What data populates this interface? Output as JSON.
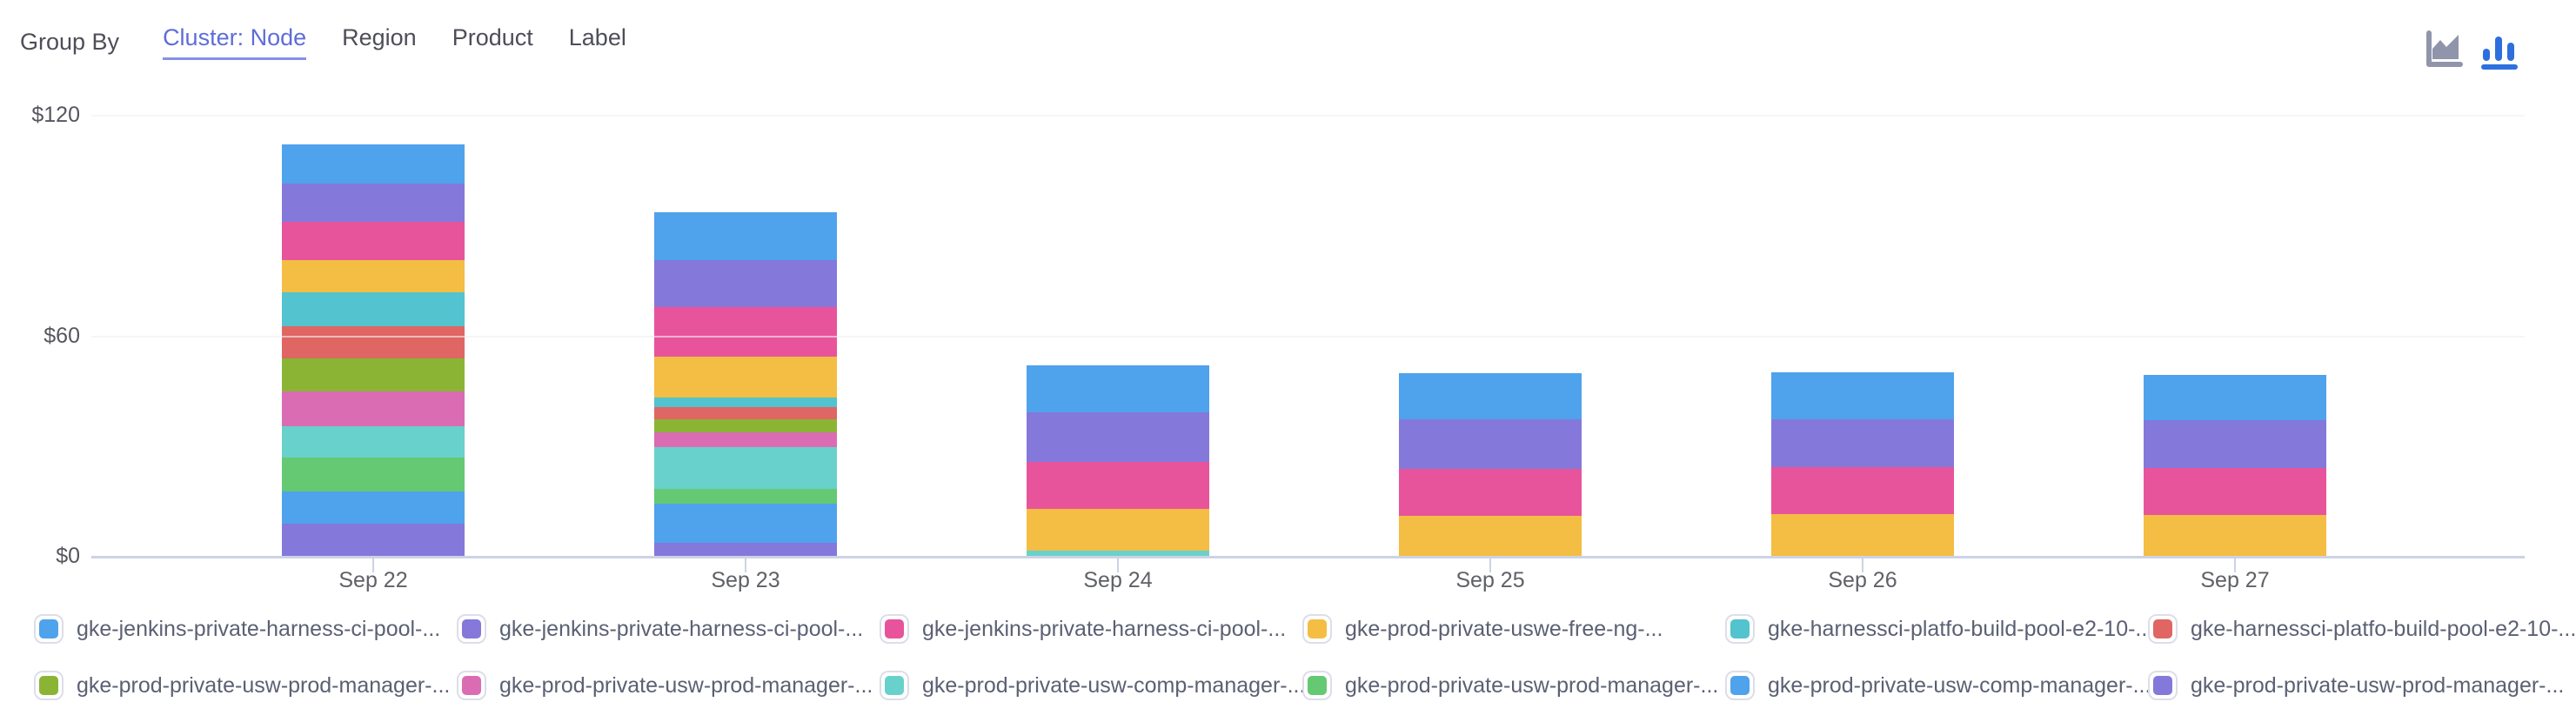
{
  "header": {
    "group_by_label": "Group By",
    "tabs": [
      {
        "label": "Cluster: Node",
        "active": true
      },
      {
        "label": "Region",
        "active": false
      },
      {
        "label": "Product",
        "active": false
      },
      {
        "label": "Label",
        "active": false
      }
    ],
    "chart_type_toggle": {
      "icons": [
        "area-chart-icon",
        "bar-chart-icon"
      ],
      "active": "bar",
      "inactive_color": "#9195ab",
      "active_color": "#2e6fde"
    }
  },
  "colors": {
    "accent_link": "#5f6cd8",
    "accent_underline": "#8490e6",
    "gridline": "#ececf1",
    "axis_baseline": "#ccd3e6",
    "axis_text": "#5f6167",
    "legend_text": "#5b6073"
  },
  "chart_data": {
    "type": "bar",
    "stacked": true,
    "stack_order": "first-series-on-top",
    "categories": [
      "Sep 22",
      "Sep 23",
      "Sep 24",
      "Sep 25",
      "Sep 26",
      "Sep 27"
    ],
    "series": [
      {
        "name": "gke-jenkins-private-harness-ci-pool-...",
        "color": "#4fa2ec",
        "values": [
          10.7,
          13.0,
          12.8,
          12.6,
          12.6,
          12.4
        ]
      },
      {
        "name": "gke-jenkins-private-harness-ci-pool-...",
        "color": "#8478db",
        "values": [
          10.4,
          12.8,
          13.3,
          13.5,
          13.2,
          13.0
        ]
      },
      {
        "name": "gke-jenkins-private-harness-ci-pool-...",
        "color": "#e8549b",
        "values": [
          10.4,
          13.5,
          12.8,
          12.8,
          12.8,
          12.8
        ]
      },
      {
        "name": "gke-prod-private-uswe-free-ng-...",
        "color": "#f4bd43",
        "values": [
          8.8,
          11.1,
          11.4,
          11.1,
          11.5,
          11.3
        ]
      },
      {
        "name": "gke-harnessci-platfo-build-pool-e2-10-...",
        "color": "#52c3cf",
        "values": [
          9.2,
          2.8,
          0,
          0,
          0,
          0
        ]
      },
      {
        "name": "gke-harnessci-platfo-build-pool-e2-10-...",
        "color": "#df6663",
        "values": [
          8.8,
          3.1,
          0,
          0,
          0,
          0
        ]
      },
      {
        "name": "gke-prod-private-usw-prod-manager-...",
        "color": "#8bb435",
        "values": [
          9.0,
          3.6,
          0,
          0,
          0,
          0
        ]
      },
      {
        "name": "gke-prod-private-usw-prod-manager-...",
        "color": "#da6cb4",
        "values": [
          9.5,
          4.0,
          0,
          0,
          0,
          0
        ]
      },
      {
        "name": "gke-prod-private-usw-comp-manager-...",
        "color": "#69d1cb",
        "values": [
          8.5,
          11.4,
          1.7,
          0,
          0,
          0
        ]
      },
      {
        "name": "gke-prod-private-usw-prod-manager-...",
        "color": "#64c972",
        "values": [
          9.2,
          4.0,
          0,
          0,
          0,
          0
        ]
      },
      {
        "name": "gke-prod-private-usw-comp-manager-...",
        "color": "#4fa2ec",
        "values": [
          8.8,
          10.7,
          0,
          0,
          0,
          0
        ]
      },
      {
        "name": "gke-prod-private-usw-prod-manager-...",
        "color": "#8478db",
        "values": [
          9.0,
          3.8,
          0,
          0,
          0,
          0
        ]
      }
    ],
    "yticks": [
      {
        "label": "$0",
        "value": 0
      },
      {
        "label": "$60",
        "value": 60
      },
      {
        "label": "$120",
        "value": 120
      }
    ],
    "ylim": [
      0,
      120
    ],
    "ylabel_prefix": "$",
    "legend_position": "bottom",
    "grid": true
  }
}
